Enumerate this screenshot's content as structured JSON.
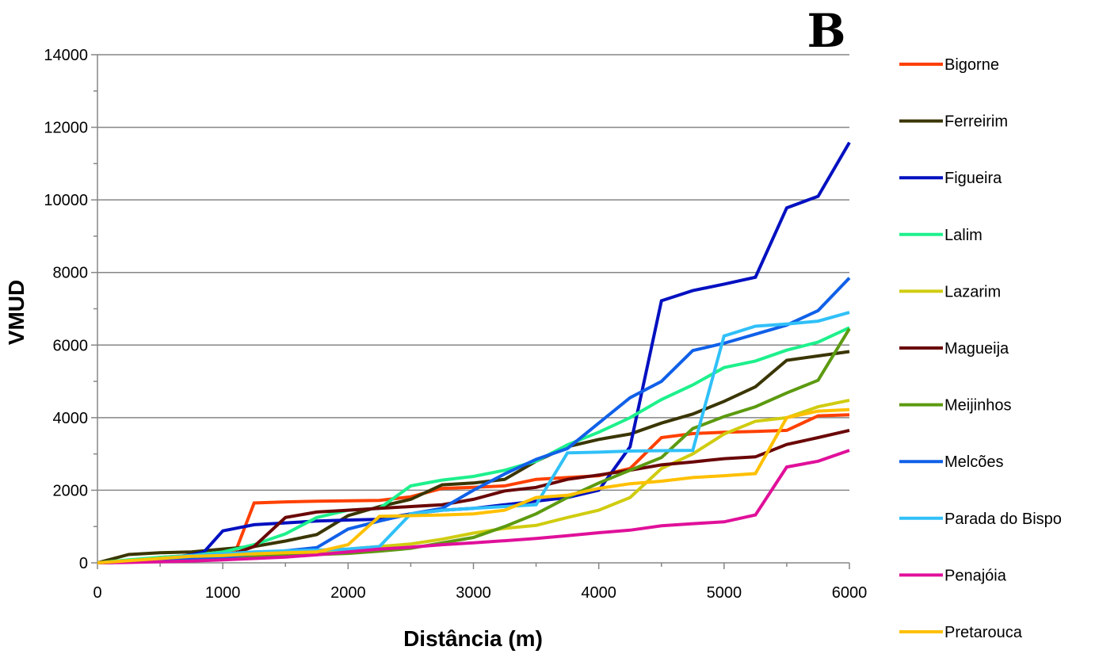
{
  "chart_data": {
    "type": "line",
    "panel_label": "B",
    "title": "",
    "xlabel": "Distância (m)",
    "ylabel": "VMUD",
    "xlim": [
      0,
      6000
    ],
    "ylim": [
      0,
      14000
    ],
    "x_ticks": [
      "0",
      "1000",
      "2000",
      "3000",
      "4000",
      "5000",
      "6000"
    ],
    "y_ticks": [
      "0",
      "2000",
      "4000",
      "6000",
      "8000",
      "10000",
      "12000",
      "14000"
    ],
    "grid": "horizontal",
    "legend_position": "right",
    "series": [
      {
        "name": "Bigorne",
        "color": "#ff4000",
        "points": [
          [
            0,
            0
          ],
          [
            250,
            50
          ],
          [
            500,
            150
          ],
          [
            750,
            200
          ],
          [
            1000,
            250
          ],
          [
            1100,
            300
          ],
          [
            1250,
            1650
          ],
          [
            1500,
            1680
          ],
          [
            1750,
            1700
          ],
          [
            2000,
            1710
          ],
          [
            2250,
            1720
          ],
          [
            2500,
            1820
          ],
          [
            2750,
            2050
          ],
          [
            3000,
            2080
          ],
          [
            3250,
            2120
          ],
          [
            3500,
            2300
          ],
          [
            3750,
            2350
          ],
          [
            4000,
            2400
          ],
          [
            4250,
            2600
          ],
          [
            4500,
            3450
          ],
          [
            4750,
            3560
          ],
          [
            5000,
            3600
          ],
          [
            5250,
            3620
          ],
          [
            5500,
            3650
          ],
          [
            5750,
            4050
          ],
          [
            6000,
            4080
          ]
        ]
      },
      {
        "name": "Ferreirim",
        "color": "#3a3500",
        "points": [
          [
            0,
            0
          ],
          [
            250,
            230
          ],
          [
            500,
            280
          ],
          [
            750,
            300
          ],
          [
            1000,
            380
          ],
          [
            1250,
            450
          ],
          [
            1500,
            600
          ],
          [
            1750,
            780
          ],
          [
            2000,
            1300
          ],
          [
            2250,
            1550
          ],
          [
            2500,
            1750
          ],
          [
            2750,
            2150
          ],
          [
            3000,
            2200
          ],
          [
            3250,
            2300
          ],
          [
            3500,
            2800
          ],
          [
            3750,
            3200
          ],
          [
            4000,
            3400
          ],
          [
            4250,
            3550
          ],
          [
            4500,
            3850
          ],
          [
            4750,
            4100
          ],
          [
            5000,
            4450
          ],
          [
            5250,
            4850
          ],
          [
            5500,
            5580
          ],
          [
            5750,
            5700
          ],
          [
            6000,
            5820
          ]
        ]
      },
      {
        "name": "Figueira",
        "color": "#0010c0",
        "points": [
          [
            0,
            0
          ],
          [
            250,
            20
          ],
          [
            500,
            100
          ],
          [
            750,
            220
          ],
          [
            850,
            300
          ],
          [
            1000,
            880
          ],
          [
            1250,
            1050
          ],
          [
            1500,
            1100
          ],
          [
            1750,
            1150
          ],
          [
            2000,
            1180
          ],
          [
            2250,
            1200
          ],
          [
            2500,
            1350
          ],
          [
            2750,
            1450
          ],
          [
            3000,
            1500
          ],
          [
            3250,
            1600
          ],
          [
            3500,
            1700
          ],
          [
            3750,
            1800
          ],
          [
            4000,
            2000
          ],
          [
            4250,
            3200
          ],
          [
            4500,
            7220
          ],
          [
            4750,
            7500
          ],
          [
            5000,
            7680
          ],
          [
            5250,
            7870
          ],
          [
            5500,
            9780
          ],
          [
            5750,
            10100
          ],
          [
            6000,
            11580
          ]
        ]
      },
      {
        "name": "Lalim",
        "color": "#1ef08c",
        "points": [
          [
            0,
            0
          ],
          [
            250,
            80
          ],
          [
            500,
            150
          ],
          [
            750,
            200
          ],
          [
            1000,
            300
          ],
          [
            1250,
            500
          ],
          [
            1500,
            800
          ],
          [
            1750,
            1250
          ],
          [
            2000,
            1450
          ],
          [
            2250,
            1500
          ],
          [
            2500,
            2120
          ],
          [
            2750,
            2280
          ],
          [
            3000,
            2380
          ],
          [
            3250,
            2550
          ],
          [
            3500,
            2800
          ],
          [
            3750,
            3250
          ],
          [
            4000,
            3600
          ],
          [
            4250,
            4000
          ],
          [
            4500,
            4500
          ],
          [
            4750,
            4900
          ],
          [
            5000,
            5380
          ],
          [
            5250,
            5560
          ],
          [
            5500,
            5860
          ],
          [
            5750,
            6080
          ],
          [
            6000,
            6480
          ]
        ]
      },
      {
        "name": "Lazarim",
        "color": "#d0cc10",
        "points": [
          [
            0,
            0
          ],
          [
            250,
            30
          ],
          [
            500,
            80
          ],
          [
            750,
            120
          ],
          [
            1000,
            160
          ],
          [
            1250,
            200
          ],
          [
            1500,
            250
          ],
          [
            1750,
            300
          ],
          [
            2000,
            380
          ],
          [
            2250,
            450
          ],
          [
            2500,
            520
          ],
          [
            2750,
            650
          ],
          [
            3000,
            820
          ],
          [
            3250,
            950
          ],
          [
            3500,
            1030
          ],
          [
            3750,
            1250
          ],
          [
            4000,
            1450
          ],
          [
            4250,
            1800
          ],
          [
            4500,
            2600
          ],
          [
            4750,
            3000
          ],
          [
            5000,
            3550
          ],
          [
            5250,
            3900
          ],
          [
            5500,
            4000
          ],
          [
            5750,
            4300
          ],
          [
            6000,
            4480
          ]
        ]
      },
      {
        "name": "Magueija",
        "color": "#6a0606",
        "points": [
          [
            0,
            0
          ],
          [
            250,
            40
          ],
          [
            500,
            70
          ],
          [
            750,
            100
          ],
          [
            1000,
            150
          ],
          [
            1250,
            450
          ],
          [
            1500,
            1250
          ],
          [
            1750,
            1400
          ],
          [
            2000,
            1450
          ],
          [
            2250,
            1500
          ],
          [
            2500,
            1550
          ],
          [
            2750,
            1600
          ],
          [
            3000,
            1750
          ],
          [
            3250,
            1980
          ],
          [
            3500,
            2080
          ],
          [
            3750,
            2300
          ],
          [
            4000,
            2420
          ],
          [
            4250,
            2550
          ],
          [
            4500,
            2700
          ],
          [
            4750,
            2780
          ],
          [
            5000,
            2870
          ],
          [
            5250,
            2920
          ],
          [
            5500,
            3260
          ],
          [
            5750,
            3450
          ],
          [
            6000,
            3650
          ]
        ]
      },
      {
        "name": "Meijinhos",
        "color": "#5c9a10",
        "points": [
          [
            0,
            0
          ],
          [
            250,
            20
          ],
          [
            500,
            50
          ],
          [
            750,
            80
          ],
          [
            1000,
            120
          ],
          [
            1250,
            160
          ],
          [
            1500,
            200
          ],
          [
            1750,
            230
          ],
          [
            2000,
            260
          ],
          [
            2250,
            320
          ],
          [
            2500,
            400
          ],
          [
            2750,
            550
          ],
          [
            3000,
            700
          ],
          [
            3250,
            1000
          ],
          [
            3500,
            1350
          ],
          [
            3750,
            1800
          ],
          [
            4000,
            2200
          ],
          [
            4250,
            2550
          ],
          [
            4500,
            2900
          ],
          [
            4750,
            3700
          ],
          [
            5000,
            4030
          ],
          [
            5250,
            4300
          ],
          [
            5500,
            4680
          ],
          [
            5750,
            5030
          ],
          [
            6000,
            6450
          ]
        ]
      },
      {
        "name": "Melcões",
        "color": "#1060e8",
        "points": [
          [
            0,
            0
          ],
          [
            250,
            30
          ],
          [
            500,
            80
          ],
          [
            750,
            120
          ],
          [
            1000,
            150
          ],
          [
            1250,
            250
          ],
          [
            1500,
            330
          ],
          [
            1750,
            420
          ],
          [
            2000,
            930
          ],
          [
            2250,
            1150
          ],
          [
            2500,
            1350
          ],
          [
            2750,
            1500
          ],
          [
            3000,
            2000
          ],
          [
            3250,
            2450
          ],
          [
            3500,
            2850
          ],
          [
            3750,
            3150
          ],
          [
            4000,
            3850
          ],
          [
            4250,
            4550
          ],
          [
            4500,
            5000
          ],
          [
            4750,
            5850
          ],
          [
            5000,
            6050
          ],
          [
            5250,
            6300
          ],
          [
            5500,
            6550
          ],
          [
            5750,
            6950
          ],
          [
            6000,
            7850
          ]
        ]
      },
      {
        "name": "Parada do Bispo",
        "color": "#30c0f8",
        "points": [
          [
            0,
            0
          ],
          [
            250,
            50
          ],
          [
            500,
            120
          ],
          [
            750,
            200
          ],
          [
            1000,
            250
          ],
          [
            1250,
            300
          ],
          [
            1500,
            330
          ],
          [
            1750,
            350
          ],
          [
            2000,
            380
          ],
          [
            2250,
            450
          ],
          [
            2500,
            1350
          ],
          [
            2750,
            1450
          ],
          [
            3000,
            1500
          ],
          [
            3250,
            1550
          ],
          [
            3500,
            1600
          ],
          [
            3750,
            3030
          ],
          [
            4000,
            3050
          ],
          [
            4250,
            3080
          ],
          [
            4500,
            3090
          ],
          [
            4750,
            3100
          ],
          [
            5000,
            6250
          ],
          [
            5250,
            6520
          ],
          [
            5500,
            6580
          ],
          [
            5750,
            6660
          ],
          [
            6000,
            6900
          ]
        ]
      },
      {
        "name": "Penajóia",
        "color": "#e0109a",
        "points": [
          [
            0,
            0
          ],
          [
            250,
            10
          ],
          [
            500,
            30
          ],
          [
            750,
            50
          ],
          [
            1000,
            80
          ],
          [
            1250,
            120
          ],
          [
            1500,
            160
          ],
          [
            1750,
            220
          ],
          [
            2000,
            300
          ],
          [
            2250,
            380
          ],
          [
            2500,
            430
          ],
          [
            2750,
            500
          ],
          [
            3000,
            550
          ],
          [
            3250,
            610
          ],
          [
            3500,
            670
          ],
          [
            3750,
            750
          ],
          [
            4000,
            830
          ],
          [
            4250,
            900
          ],
          [
            4500,
            1020
          ],
          [
            4750,
            1080
          ],
          [
            5000,
            1130
          ],
          [
            5250,
            1320
          ],
          [
            5500,
            2640
          ],
          [
            5750,
            2800
          ],
          [
            6000,
            3100
          ]
        ]
      },
      {
        "name": "Pretarouca",
        "color": "#ffc000",
        "points": [
          [
            0,
            0
          ],
          [
            250,
            60
          ],
          [
            500,
            120
          ],
          [
            750,
            180
          ],
          [
            1000,
            200
          ],
          [
            1250,
            250
          ],
          [
            1500,
            280
          ],
          [
            1750,
            300
          ],
          [
            2000,
            500
          ],
          [
            2250,
            1280
          ],
          [
            2500,
            1300
          ],
          [
            2750,
            1320
          ],
          [
            3000,
            1350
          ],
          [
            3250,
            1450
          ],
          [
            3500,
            1800
          ],
          [
            3750,
            1860
          ],
          [
            4000,
            2050
          ],
          [
            4250,
            2180
          ],
          [
            4500,
            2250
          ],
          [
            4750,
            2350
          ],
          [
            5000,
            2400
          ],
          [
            5250,
            2460
          ],
          [
            5500,
            4000
          ],
          [
            5750,
            4180
          ],
          [
            6000,
            4220
          ]
        ]
      }
    ]
  }
}
